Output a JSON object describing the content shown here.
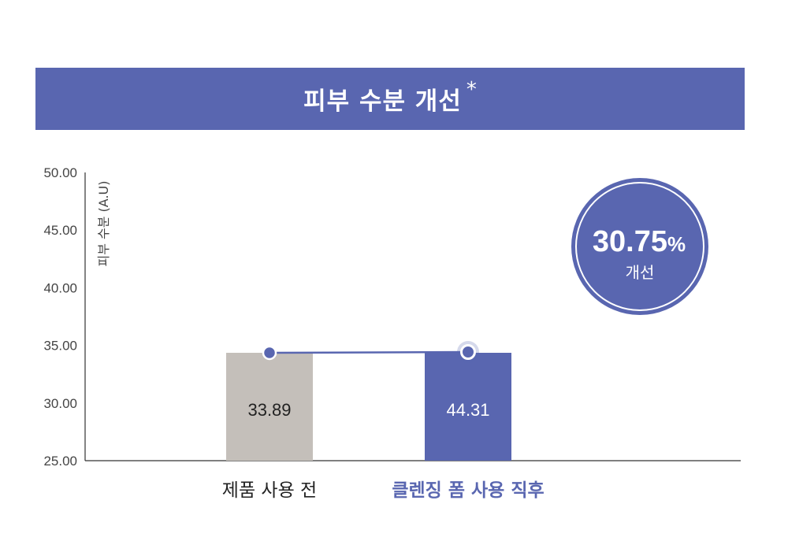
{
  "header": {
    "title": "피부 수분 개선",
    "marker": "*"
  },
  "badge": {
    "value": "30.75",
    "unit": "%",
    "label": "개선"
  },
  "colors": {
    "accent": "#5966b0",
    "before_bar": "#c4bfba",
    "axis": "#333333",
    "before_text": "#222222",
    "after_text": "#5966b0"
  },
  "chart_data": {
    "type": "bar",
    "ylabel": "피부 수분 (A.U)",
    "ylim": [
      25,
      50
    ],
    "yticks": [
      "25.00",
      "30.00",
      "35.00",
      "40.00",
      "45.00",
      "50.00"
    ],
    "categories": [
      "제품 사용 전",
      "클렌징 폼 사용 직후"
    ],
    "values": [
      33.89,
      44.31
    ],
    "value_labels": [
      "33.89",
      "44.31"
    ],
    "grid": false,
    "connector_line": true
  }
}
